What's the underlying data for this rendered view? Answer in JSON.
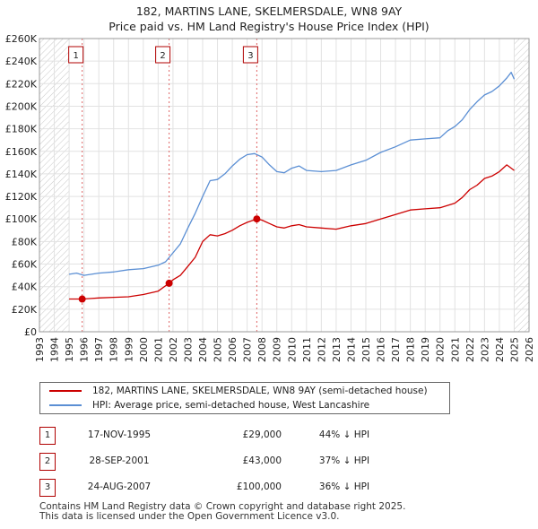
{
  "title_line1": "182, MARTINS LANE, SKELMERSDALE, WN8 9AY",
  "title_line2": "Price paid vs. HM Land Registry's House Price Index (HPI)",
  "chart_data": {
    "type": "line",
    "title": "182, MARTINS LANE, SKELMERSDALE, WN8 9AY — Price paid vs. HM Land Registry's House Price Index (HPI)",
    "xlabel": "",
    "ylabel": "",
    "xlim": [
      1993,
      2026
    ],
    "ylim": [
      0,
      260000
    ],
    "x_ticks": [
      1993,
      1994,
      1995,
      1996,
      1997,
      1998,
      1999,
      2000,
      2001,
      2002,
      2003,
      2004,
      2005,
      2006,
      2007,
      2008,
      2009,
      2010,
      2011,
      2012,
      2013,
      2014,
      2015,
      2016,
      2017,
      2018,
      2019,
      2020,
      2021,
      2022,
      2023,
      2024,
      2025,
      2026
    ],
    "y_ticks": [
      0,
      20000,
      40000,
      60000,
      80000,
      100000,
      120000,
      140000,
      160000,
      180000,
      200000,
      220000,
      240000,
      260000
    ],
    "y_tick_labels": [
      "£0",
      "£20K",
      "£40K",
      "£60K",
      "£80K",
      "£100K",
      "£120K",
      "£140K",
      "£160K",
      "£180K",
      "£200K",
      "£220K",
      "£240K",
      "£260K"
    ],
    "grid": true,
    "data_start_x": 1995.0,
    "data_end_x": 2025.0,
    "series": [
      {
        "name": "182, MARTINS LANE, SKELMERSDALE, WN8 9AY (semi-detached house)",
        "color": "#cc0000",
        "x": [
          1995.0,
          1995.88,
          1996.5,
          1997.0,
          1998.0,
          1999.0,
          2000.0,
          2001.0,
          2001.74,
          2002.0,
          2002.5,
          2003.0,
          2003.5,
          2004.0,
          2004.5,
          2005.0,
          2005.5,
          2006.0,
          2006.5,
          2007.0,
          2007.65,
          2008.0,
          2008.5,
          2009.0,
          2009.5,
          2010.0,
          2010.5,
          2011.0,
          2012.0,
          2013.0,
          2014.0,
          2015.0,
          2016.0,
          2017.0,
          2018.0,
          2019.0,
          2020.0,
          2021.0,
          2021.5,
          2022.0,
          2022.5,
          2023.0,
          2023.5,
          2024.0,
          2024.5,
          2025.0
        ],
        "y": [
          29000,
          29000,
          29500,
          30000,
          30500,
          31000,
          33000,
          36000,
          43000,
          46000,
          50000,
          58000,
          66000,
          80000,
          86000,
          85000,
          87000,
          90000,
          94000,
          97000,
          100000,
          99000,
          96000,
          93000,
          92000,
          94000,
          95000,
          93000,
          92000,
          91000,
          94000,
          96000,
          100000,
          104000,
          108000,
          109000,
          110000,
          114000,
          119000,
          126000,
          130000,
          136000,
          138000,
          142000,
          148000,
          143000
        ]
      },
      {
        "name": "HPI: Average price, semi-detached house, West Lancashire",
        "color": "#5b8fd4",
        "x": [
          1995.0,
          1995.5,
          1996.0,
          1997.0,
          1998.0,
          1999.0,
          2000.0,
          2001.0,
          2001.5,
          2002.0,
          2002.5,
          2003.0,
          2003.5,
          2004.0,
          2004.5,
          2005.0,
          2005.5,
          2006.0,
          2006.5,
          2007.0,
          2007.5,
          2008.0,
          2008.5,
          2009.0,
          2009.5,
          2010.0,
          2010.5,
          2011.0,
          2012.0,
          2013.0,
          2014.0,
          2015.0,
          2016.0,
          2017.0,
          2018.0,
          2019.0,
          2020.0,
          2020.5,
          2021.0,
          2021.5,
          2022.0,
          2022.5,
          2023.0,
          2023.5,
          2024.0,
          2024.5,
          2024.8,
          2025.0
        ],
        "y": [
          51000,
          52000,
          50000,
          52000,
          53000,
          55000,
          56000,
          59000,
          62000,
          70000,
          78000,
          92000,
          105000,
          120000,
          134000,
          135000,
          140000,
          147000,
          153000,
          157000,
          158000,
          155000,
          148000,
          142000,
          141000,
          145000,
          147000,
          143000,
          142000,
          143000,
          148000,
          152000,
          159000,
          164000,
          170000,
          171000,
          172000,
          178000,
          182000,
          188000,
          197000,
          204000,
          210000,
          213000,
          218000,
          225000,
          230000,
          224000
        ]
      }
    ],
    "annotations": [
      {
        "label": "1",
        "x": 1995.88,
        "y": 29000
      },
      {
        "label": "2",
        "x": 2001.74,
        "y": 43000
      },
      {
        "label": "3",
        "x": 2007.65,
        "y": 100000
      }
    ]
  },
  "legend": {
    "series1": "182, MARTINS LANE, SKELMERSDALE, WN8 9AY (semi-detached house)",
    "series2": "HPI: Average price, semi-detached house, West Lancashire",
    "color1": "#cc0000",
    "color2": "#5b8fd4"
  },
  "transactions": [
    {
      "num": "1",
      "date": "17-NOV-1995",
      "price": "£29,000",
      "hpi": "44% ↓ HPI"
    },
    {
      "num": "2",
      "date": "28-SEP-2001",
      "price": "£43,000",
      "hpi": "37% ↓ HPI"
    },
    {
      "num": "3",
      "date": "24-AUG-2007",
      "price": "£100,000",
      "hpi": "36% ↓ HPI"
    }
  ],
  "footer_line1": "Contains HM Land Registry data © Crown copyright and database right 2025.",
  "footer_line2": "This data is licensed under the Open Government Licence v3.0."
}
